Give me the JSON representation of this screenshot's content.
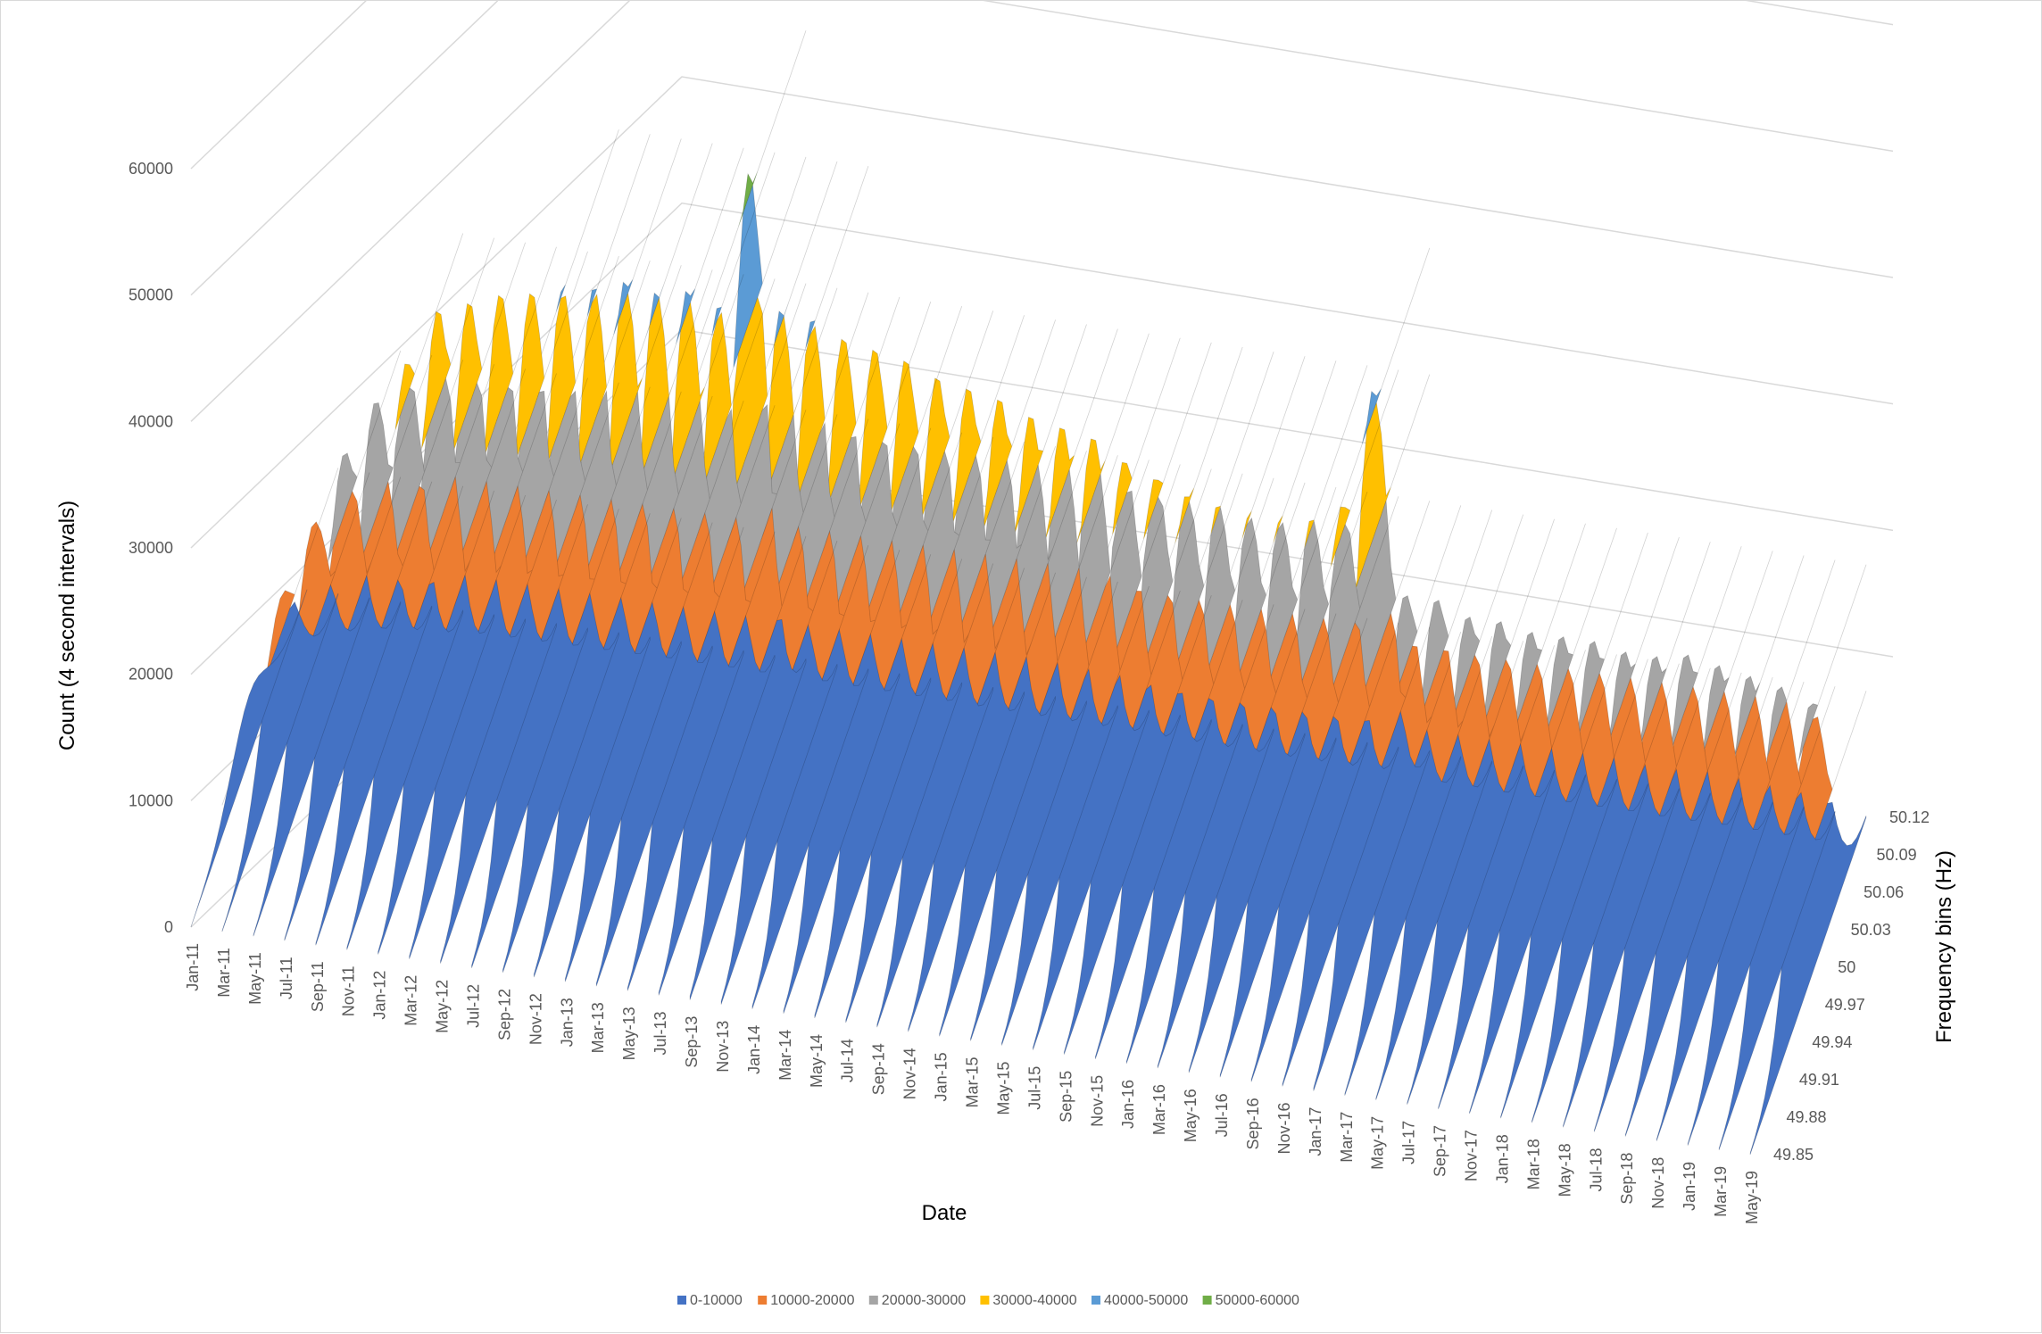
{
  "chart_data": {
    "type": "surface",
    "xlabel": "Date",
    "ylabel": "Count (4 second intervals)",
    "zlabel": "Frequency bins (Hz)",
    "count_ticks": [
      "0",
      "10000",
      "20000",
      "30000",
      "40000",
      "50000",
      "60000"
    ],
    "count_range": [
      0,
      60000
    ],
    "date_ticks": [
      "Jan-11",
      "Mar-11",
      "May-11",
      "Jul-11",
      "Sep-11",
      "Nov-11",
      "Jan-12",
      "Mar-12",
      "May-12",
      "Jul-12",
      "Sep-12",
      "Nov-12",
      "Jan-13",
      "Mar-13",
      "May-13",
      "Jul-13",
      "Sep-13",
      "Nov-13",
      "Jan-14",
      "Mar-14",
      "May-14",
      "Jul-14",
      "Sep-14",
      "Nov-14",
      "Jan-15",
      "Mar-15",
      "May-15",
      "Jul-15",
      "Sep-15",
      "Nov-15",
      "Jan-16",
      "Mar-16",
      "May-16",
      "Jul-16",
      "Sep-16",
      "Nov-16",
      "Jan-17",
      "Mar-17",
      "May-17",
      "Jul-17",
      "Sep-17",
      "Nov-17",
      "Jan-18",
      "Mar-18",
      "May-18",
      "Jul-18",
      "Sep-18",
      "Nov-18",
      "Jan-19",
      "Mar-19",
      "May-19"
    ],
    "frequency_ticks": [
      "49.85",
      "49.88",
      "49.91",
      "49.94",
      "49.97",
      "50",
      "50.03",
      "50.06",
      "50.09",
      "50.12"
    ],
    "legend": [
      {
        "label": "0-10000",
        "color": "#4472c4"
      },
      {
        "label": "10000-20000",
        "color": "#ed7d31"
      },
      {
        "label": "20000-30000",
        "color": "#a5a5a5"
      },
      {
        "label": "30000-40000",
        "color": "#ffc000"
      },
      {
        "label": "40000-50000",
        "color": "#5b9bd5"
      },
      {
        "label": "50000-60000",
        "color": "#70ad47"
      }
    ],
    "legend_position": "bottom",
    "grid": true,
    "peak_count_per_date": [
      5000,
      13000,
      19000,
      25000,
      29500,
      33000,
      37500,
      38500,
      39500,
      40000,
      40500,
      41000,
      42000,
      41500,
      42000,
      41000,
      52000,
      41500,
      41000,
      40000,
      39500,
      39000,
      38000,
      37500,
      37000,
      36000,
      35500,
      35000,
      33500,
      32500,
      31500,
      31000,
      30500,
      30500,
      31000,
      32500,
      42000,
      26000,
      26000,
      25000,
      25000,
      24500,
      24500,
      24500,
      24000,
      24000,
      24500,
      24000,
      23500,
      23000,
      22000
    ]
  }
}
